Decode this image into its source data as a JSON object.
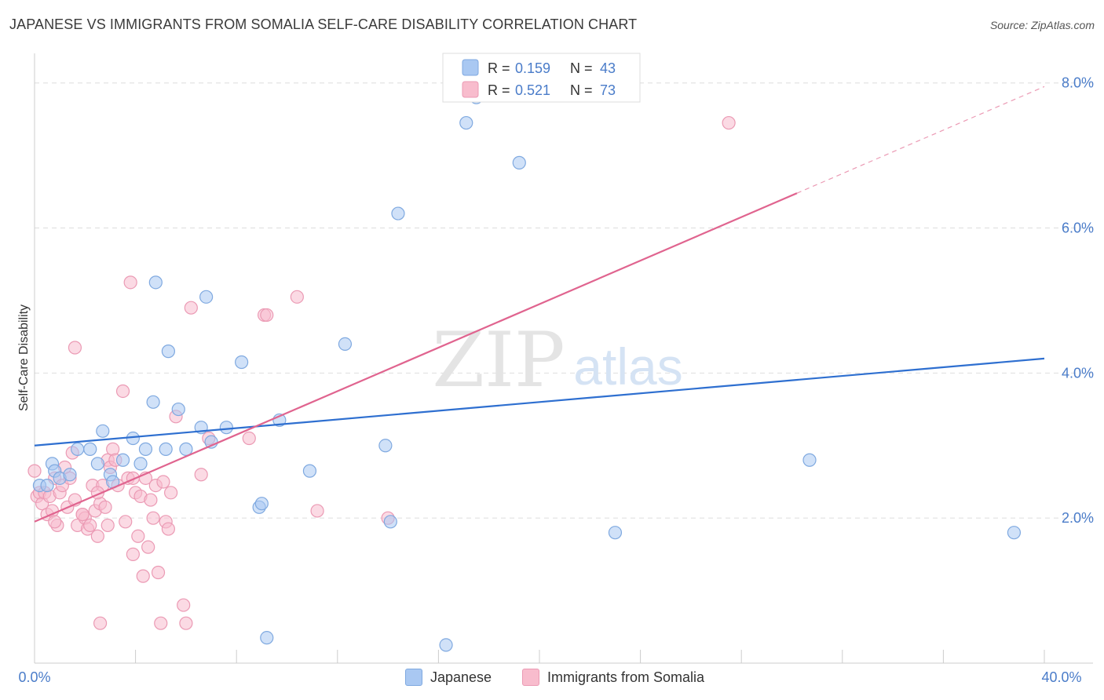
{
  "title": "JAPANESE VS IMMIGRANTS FROM SOMALIA SELF-CARE DISABILITY CORRELATION CHART",
  "source": "Source: ZipAtlas.com",
  "watermark": {
    "zip": "ZIP",
    "atlas": "atlas"
  },
  "colors": {
    "blue_fill": "#a9c8f2",
    "blue_stroke": "#7fa9e0",
    "blue_line": "#2e6fd0",
    "pink_fill": "#f8bccd",
    "pink_stroke": "#eb9ab4",
    "pink_line": "#e0648f",
    "axis_text": "#4a7cc9",
    "grid": "#dddddd"
  },
  "legend_top": [
    {
      "r_label": "R =",
      "r_value": "0.159",
      "n_label": "N =",
      "n_value": "43"
    },
    {
      "r_label": "R =",
      "r_value": "0.521",
      "n_label": "N =",
      "n_value": "73"
    }
  ],
  "chart_data": {
    "type": "scatter",
    "ylabel": "Self-Care Disability",
    "xlim": [
      0,
      40
    ],
    "ylim": [
      0,
      8.3
    ],
    "x_tick_labels": [
      "0.0%",
      "40.0%"
    ],
    "y_ticks": [
      2,
      4,
      6,
      8
    ],
    "y_tick_labels": [
      "2.0%",
      "4.0%",
      "6.0%",
      "8.0%"
    ],
    "grid": "horizontal dashed",
    "series": [
      {
        "name": "Japanese",
        "r": 0.159,
        "n": 43,
        "trend": {
          "x": [
            0,
            40
          ],
          "y": [
            3.0,
            4.2
          ]
        },
        "points": [
          [
            0.2,
            2.45
          ],
          [
            0.5,
            2.45
          ],
          [
            0.7,
            2.75
          ],
          [
            0.8,
            2.65
          ],
          [
            1.0,
            2.55
          ],
          [
            1.4,
            2.6
          ],
          [
            1.7,
            2.95
          ],
          [
            2.2,
            2.95
          ],
          [
            2.5,
            2.75
          ],
          [
            2.7,
            3.2
          ],
          [
            3.0,
            2.6
          ],
          [
            3.1,
            2.5
          ],
          [
            3.5,
            2.8
          ],
          [
            3.9,
            3.1
          ],
          [
            4.2,
            2.75
          ],
          [
            4.4,
            2.95
          ],
          [
            4.7,
            3.6
          ],
          [
            4.8,
            5.25
          ],
          [
            5.2,
            2.95
          ],
          [
            5.3,
            4.3
          ],
          [
            5.7,
            3.5
          ],
          [
            6.0,
            2.95
          ],
          [
            6.6,
            3.25
          ],
          [
            6.8,
            5.05
          ],
          [
            7.0,
            3.05
          ],
          [
            7.6,
            3.25
          ],
          [
            8.2,
            4.15
          ],
          [
            8.9,
            2.15
          ],
          [
            9.0,
            2.2
          ],
          [
            9.2,
            0.35
          ],
          [
            9.7,
            3.35
          ],
          [
            10.9,
            2.65
          ],
          [
            12.3,
            4.4
          ],
          [
            13.9,
            3.0
          ],
          [
            14.1,
            1.95
          ],
          [
            14.4,
            6.2
          ],
          [
            16.3,
            0.25
          ],
          [
            17.1,
            7.45
          ],
          [
            17.5,
            7.8
          ],
          [
            19.2,
            6.9
          ],
          [
            23.0,
            1.8
          ],
          [
            30.7,
            2.8
          ],
          [
            38.8,
            1.8
          ]
        ]
      },
      {
        "name": "Immigrants from Somalia",
        "r": 0.521,
        "n": 73,
        "trend": {
          "x": [
            0,
            40
          ],
          "y": [
            1.95,
            7.95
          ],
          "solid_until_x": 30.2
        },
        "points": [
          [
            0.0,
            2.65
          ],
          [
            0.1,
            2.3
          ],
          [
            0.2,
            2.35
          ],
          [
            0.3,
            2.2
          ],
          [
            0.4,
            2.35
          ],
          [
            0.5,
            2.05
          ],
          [
            0.6,
            2.3
          ],
          [
            0.7,
            2.1
          ],
          [
            0.8,
            2.55
          ],
          [
            0.9,
            1.9
          ],
          [
            1.0,
            2.35
          ],
          [
            1.1,
            2.45
          ],
          [
            1.2,
            2.7
          ],
          [
            1.3,
            2.15
          ],
          [
            1.4,
            2.55
          ],
          [
            1.5,
            2.9
          ],
          [
            1.6,
            2.25
          ],
          [
            1.7,
            1.9
          ],
          [
            1.6,
            4.35
          ],
          [
            1.9,
            2.05
          ],
          [
            2.0,
            2.0
          ],
          [
            2.1,
            1.85
          ],
          [
            2.2,
            1.9
          ],
          [
            2.3,
            2.45
          ],
          [
            2.4,
            2.1
          ],
          [
            2.5,
            1.75
          ],
          [
            2.6,
            2.2
          ],
          [
            2.7,
            2.45
          ],
          [
            2.8,
            2.15
          ],
          [
            2.9,
            2.8
          ],
          [
            3.0,
            2.7
          ],
          [
            3.1,
            2.95
          ],
          [
            3.2,
            2.8
          ],
          [
            3.3,
            2.45
          ],
          [
            3.5,
            3.75
          ],
          [
            3.6,
            1.95
          ],
          [
            3.7,
            2.55
          ],
          [
            3.8,
            5.25
          ],
          [
            3.9,
            1.5
          ],
          [
            4.0,
            2.35
          ],
          [
            4.1,
            1.75
          ],
          [
            4.2,
            2.3
          ],
          [
            4.3,
            1.2
          ],
          [
            4.4,
            2.55
          ],
          [
            4.5,
            1.6
          ],
          [
            4.6,
            2.25
          ],
          [
            4.7,
            2.0
          ],
          [
            4.8,
            2.45
          ],
          [
            4.9,
            1.25
          ],
          [
            5.0,
            0.55
          ],
          [
            5.1,
            2.5
          ],
          [
            5.2,
            1.95
          ],
          [
            5.3,
            1.85
          ],
          [
            5.4,
            2.35
          ],
          [
            5.6,
            3.4
          ],
          [
            5.9,
            0.8
          ],
          [
            6.0,
            0.55
          ],
          [
            6.2,
            4.9
          ],
          [
            6.6,
            2.6
          ],
          [
            6.9,
            3.1
          ],
          [
            8.5,
            3.1
          ],
          [
            9.1,
            4.8
          ],
          [
            9.2,
            4.8
          ],
          [
            10.4,
            5.05
          ],
          [
            11.2,
            2.1
          ],
          [
            14.0,
            2.0
          ],
          [
            27.5,
            7.45
          ],
          [
            2.6,
            0.55
          ],
          [
            2.9,
            1.9
          ],
          [
            1.9,
            2.05
          ],
          [
            3.9,
            2.55
          ],
          [
            2.5,
            2.35
          ],
          [
            0.8,
            1.95
          ]
        ]
      }
    ]
  }
}
